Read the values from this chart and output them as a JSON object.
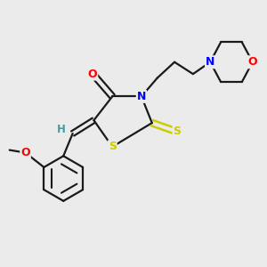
{
  "bg_color": "#ebebeb",
  "bond_color": "#1a1a1a",
  "atom_colors": {
    "O": "#ff0000",
    "S": "#cccc00",
    "N": "#0000ff",
    "H": "#4a9a9a",
    "C": "#1a1a1a"
  },
  "figsize": [
    3.0,
    3.0
  ],
  "dpi": 100
}
